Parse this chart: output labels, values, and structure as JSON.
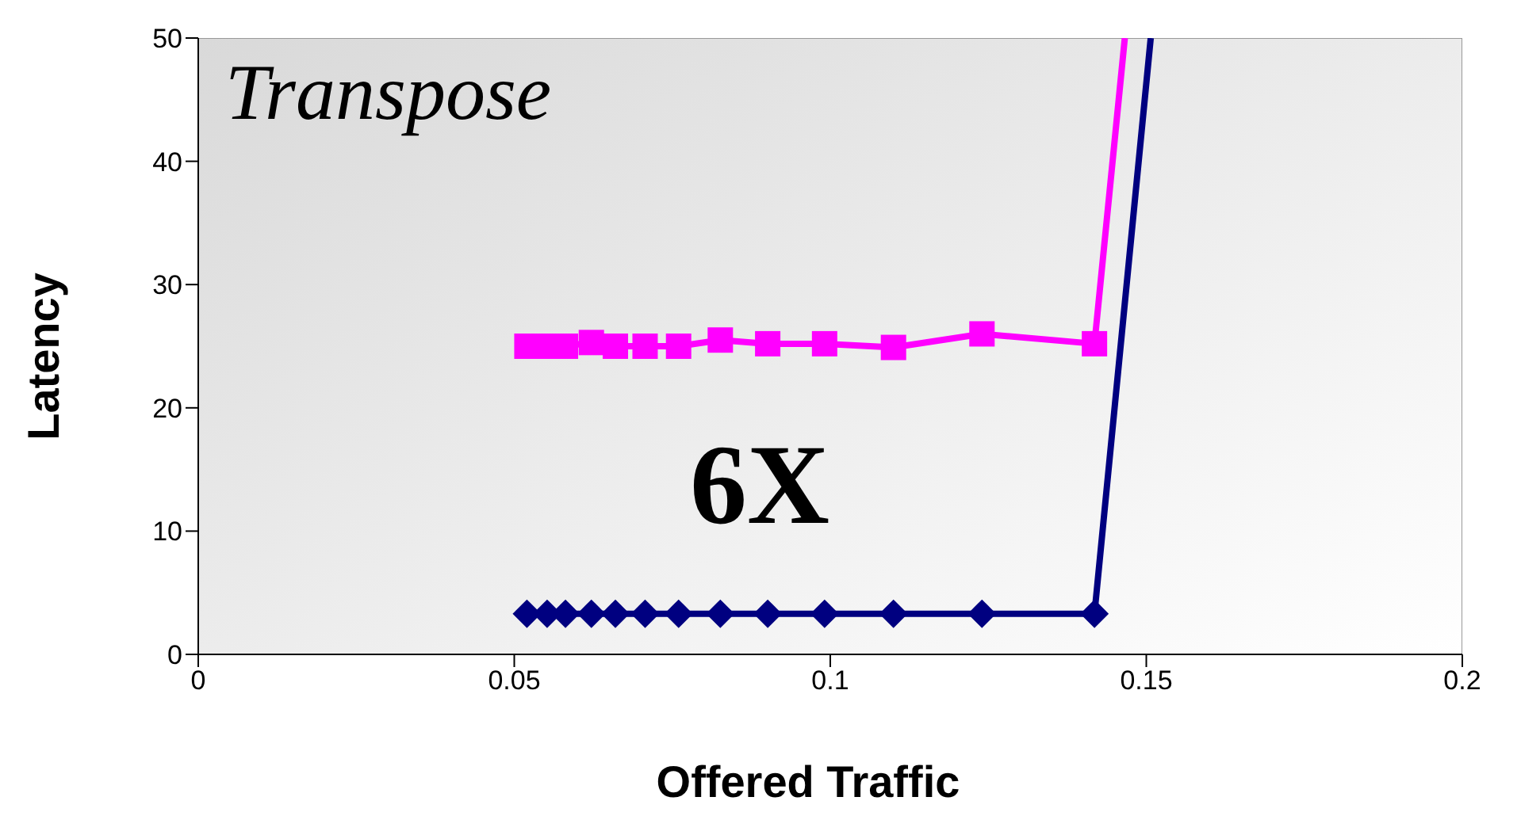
{
  "chart_data": {
    "type": "line",
    "title": "Transpose",
    "xlabel": "Offered Traffic",
    "ylabel": "Latency",
    "annotations": [
      "6X"
    ],
    "series": [
      {
        "color": "#ff00ff",
        "marker": "square",
        "x": [
          0.052,
          0.0552,
          0.0581,
          0.0622,
          0.066,
          0.0707,
          0.076,
          0.0826,
          0.0901,
          0.0991,
          0.11,
          0.124,
          0.1418,
          0.1466
        ],
        "values": [
          25,
          25,
          25,
          25.3,
          25,
          25,
          25,
          25.5,
          25.2,
          25.2,
          24.9,
          26,
          25.2,
          50
        ]
      },
      {
        "color": "#000080",
        "marker": "diamond",
        "x": [
          0.052,
          0.0552,
          0.0581,
          0.0622,
          0.066,
          0.0707,
          0.076,
          0.0826,
          0.0901,
          0.0991,
          0.11,
          0.124,
          0.1418,
          0.1507
        ],
        "values": [
          3.3,
          3.3,
          3.3,
          3.3,
          3.3,
          3.3,
          3.3,
          3.3,
          3.3,
          3.3,
          3.3,
          3.3,
          3.3,
          50
        ]
      }
    ],
    "xlim": [
      0,
      0.2
    ],
    "xticks": [
      0,
      0.05,
      0.1,
      0.15,
      0.2
    ],
    "ylim": [
      0,
      50
    ],
    "yticks": [
      0,
      10,
      20,
      30,
      40,
      50
    ]
  }
}
